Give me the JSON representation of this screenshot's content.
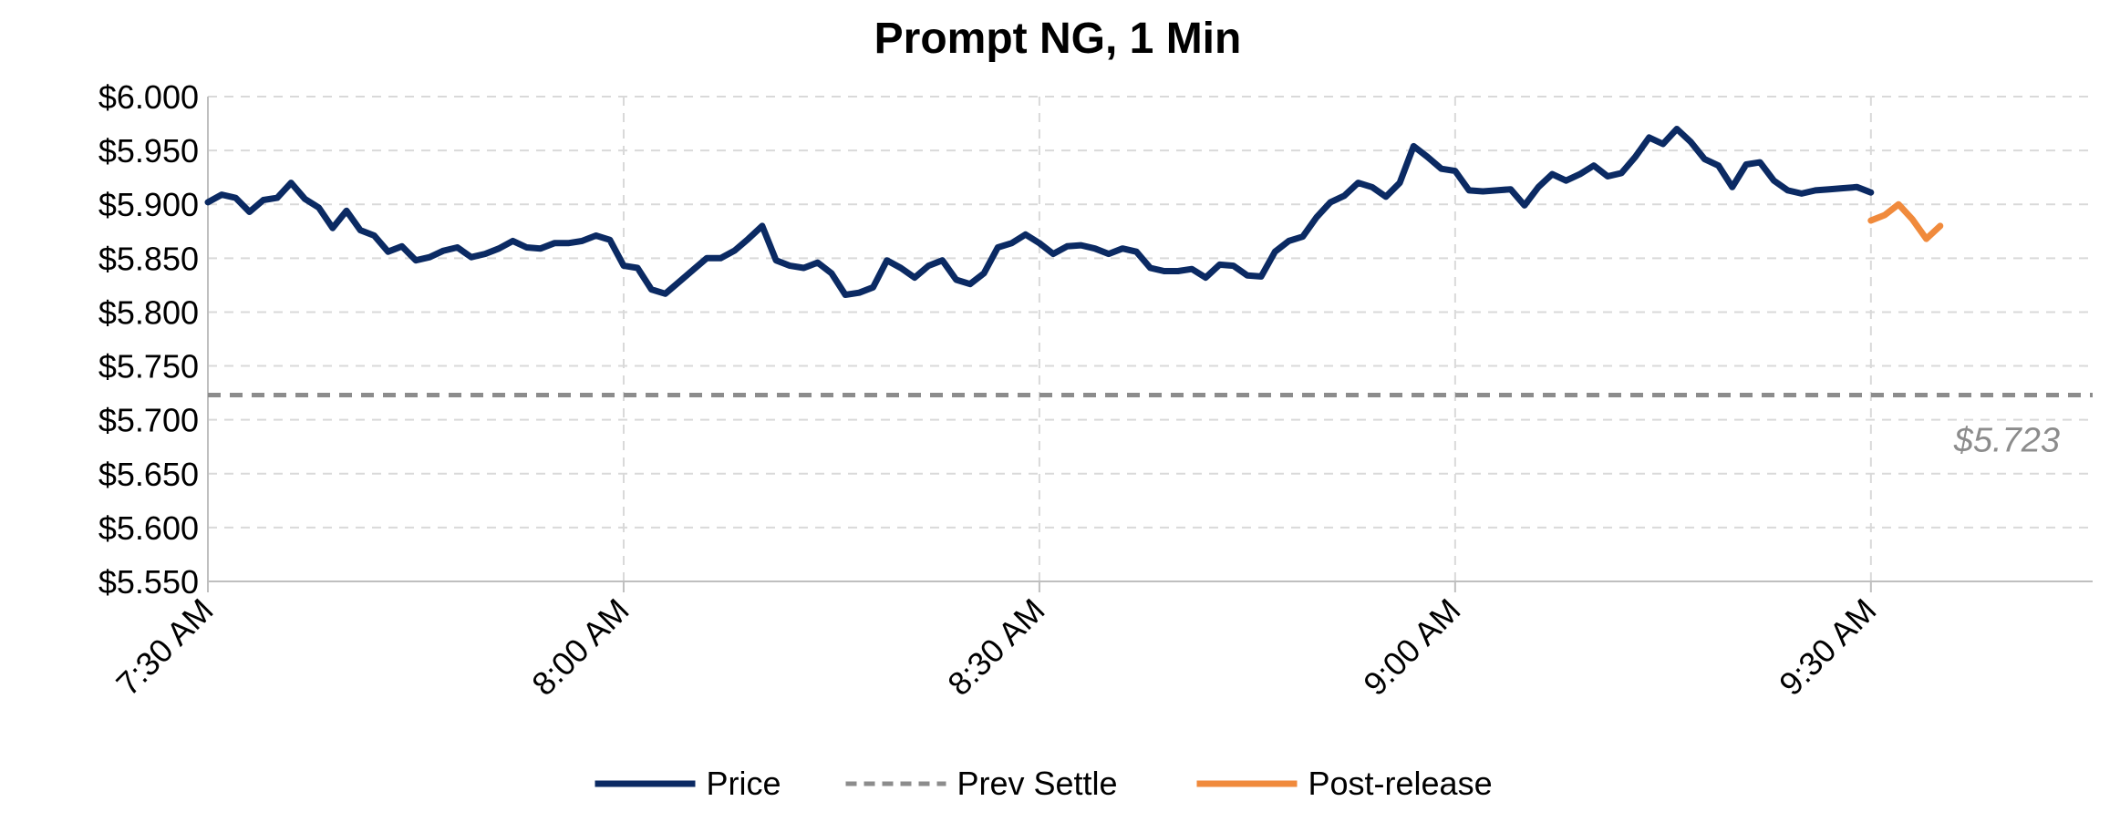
{
  "chart_data": {
    "type": "line",
    "title": "Prompt NG, 1 Min",
    "xlabel": "",
    "ylabel": "",
    "ylim": [
      5.55,
      6.0
    ],
    "yticks": [
      5.55,
      5.6,
      5.65,
      5.7,
      5.75,
      5.8,
      5.85,
      5.9,
      5.95,
      6.0
    ],
    "ytick_labels": [
      "$5.550",
      "$5.600",
      "$5.650",
      "$5.700",
      "$5.750",
      "$5.800",
      "$5.850",
      "$5.900",
      "$5.950",
      "$6.000"
    ],
    "x_unit": "minutes after 7:30 AM",
    "xlim": [
      0,
      136
    ],
    "xticks": [
      0,
      30,
      60,
      90,
      120
    ],
    "xtick_labels": [
      "7:30 AM",
      "8:00 AM",
      "8:30 AM",
      "9:00 AM",
      "9:30 AM"
    ],
    "grid": true,
    "legend_position": "bottom",
    "series": [
      {
        "name": "Price",
        "color": "#0b2a63",
        "style": "solid",
        "x": [
          0,
          1,
          2,
          3,
          4,
          5,
          6,
          7,
          8,
          9,
          10,
          11,
          12,
          13,
          14,
          15,
          16,
          17,
          18,
          19,
          20,
          21,
          22,
          23,
          24,
          25,
          26,
          27,
          28,
          29,
          30,
          31,
          32,
          33,
          34,
          35,
          36,
          37,
          38,
          39,
          40,
          41,
          42,
          43,
          44,
          45,
          46,
          47,
          48,
          49,
          50,
          51,
          52,
          53,
          54,
          55,
          56,
          57,
          58,
          59,
          60,
          61,
          62,
          63,
          64,
          65,
          66,
          67,
          68,
          69,
          70,
          71,
          72,
          73,
          74,
          75,
          76,
          77,
          78,
          79,
          80,
          81,
          82,
          83,
          84,
          85,
          86,
          87,
          88,
          89,
          90,
          91,
          92,
          93,
          94,
          95,
          96,
          97,
          98,
          99,
          100,
          101,
          102,
          103,
          104,
          105,
          106,
          107,
          108,
          109,
          110,
          111,
          112,
          113,
          114,
          115,
          116,
          117,
          118,
          119,
          120
        ],
        "y": [
          5.902,
          5.909,
          5.906,
          5.893,
          5.904,
          5.906,
          5.92,
          5.905,
          5.897,
          5.878,
          5.894,
          5.876,
          5.871,
          5.856,
          5.861,
          5.848,
          5.851,
          5.857,
          5.86,
          5.851,
          5.854,
          5.859,
          5.866,
          5.86,
          5.859,
          5.864,
          5.864,
          5.866,
          5.871,
          5.867,
          5.843,
          5.841,
          5.821,
          5.817,
          5.828,
          5.839,
          5.85,
          5.85,
          5.857,
          5.868,
          5.88,
          5.848,
          5.843,
          5.841,
          5.846,
          5.836,
          5.816,
          5.818,
          5.823,
          5.848,
          5.841,
          5.832,
          5.843,
          5.848,
          5.83,
          5.826,
          5.836,
          5.86,
          5.864,
          5.872,
          5.864,
          5.854,
          5.861,
          5.862,
          5.859,
          5.854,
          5.859,
          5.856,
          5.841,
          5.838,
          5.838,
          5.84,
          5.832,
          5.844,
          5.843,
          5.834,
          5.833,
          5.856,
          5.866,
          5.87,
          5.888,
          5.902,
          5.908,
          5.92,
          5.916,
          5.907,
          5.92,
          5.954,
          5.944,
          5.933,
          5.931,
          5.913,
          5.912,
          5.913,
          5.914,
          5.899,
          5.916,
          5.928,
          5.922,
          5.928,
          5.936,
          5.926,
          5.929,
          5.944,
          5.962,
          5.956,
          5.97,
          5.958,
          5.942,
          5.936,
          5.916,
          5.937,
          5.939,
          5.922,
          5.913,
          5.91,
          5.913,
          5.914,
          5.915,
          5.916,
          5.911
        ]
      },
      {
        "name": "Prev Settle",
        "color": "#8c8c8c",
        "style": "dashed",
        "x": [
          0,
          136
        ],
        "y": [
          5.723,
          5.723
        ]
      },
      {
        "name": "Post-release",
        "color": "#f08a3c",
        "style": "solid",
        "x": [
          120,
          121,
          122,
          123,
          124,
          125
        ],
        "y": [
          5.885,
          5.89,
          5.9,
          5.886,
          5.868,
          5.88
        ]
      }
    ],
    "annotations": [
      {
        "text": "$5.723",
        "x": 136,
        "y": 5.723,
        "anchor": "below-right",
        "color": "#8c8c8c"
      }
    ]
  }
}
